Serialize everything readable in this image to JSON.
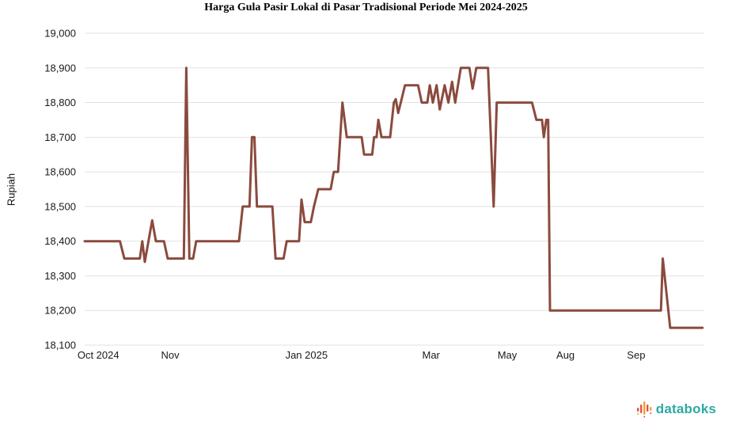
{
  "title": "Harga Gula Pasir Lokal di Pasar Tradisional Periode Mei 2024-2025",
  "y_axis_label": "Rupiah",
  "footer": {
    "brand": "databoks"
  },
  "colors": {
    "line": "#8B4A3E",
    "grid": "#E2E2E2",
    "text": "#1A1A1A",
    "brand_teal": "#2CA9A4",
    "brand_red": "#E8503A",
    "brand_orange": "#F2A03D"
  },
  "chart_data": {
    "type": "line",
    "title": "Harga Gula Pasir Lokal di Pasar Tradisional Periode Mei 2024-2025",
    "xlabel": "",
    "ylabel": "Rupiah",
    "ylim": [
      18100,
      19000
    ],
    "grid": "horizontal",
    "legend": "none",
    "y_ticks": [
      {
        "value": 19000,
        "label": "19,000"
      },
      {
        "value": 18900,
        "label": "18,900"
      },
      {
        "value": 18800,
        "label": "18,800"
      },
      {
        "value": 18700,
        "label": "18,700"
      },
      {
        "value": 18600,
        "label": "18,600"
      },
      {
        "value": 18500,
        "label": "18,500"
      },
      {
        "value": 18400,
        "label": "18,400"
      },
      {
        "value": 18300,
        "label": "18,300"
      },
      {
        "value": 18200,
        "label": "18,200"
      },
      {
        "value": 18100,
        "label": "18,100"
      }
    ],
    "x_ticks": [
      {
        "label": "Oct 2024",
        "f": 0.022
      },
      {
        "label": "Nov",
        "f": 0.138
      },
      {
        "label": "Jan 2025",
        "f": 0.358
      },
      {
        "label": "Mar",
        "f": 0.559
      },
      {
        "label": "May",
        "f": 0.682
      },
      {
        "label": "Aug",
        "f": 0.776
      },
      {
        "label": "Sep",
        "f": 0.89
      }
    ],
    "series": [
      {
        "name": "Harga Gula Pasir Lokal (Rupiah)",
        "points": [
          [
            0.0,
            18400
          ],
          [
            0.057,
            18400
          ],
          [
            0.064,
            18350
          ],
          [
            0.089,
            18350
          ],
          [
            0.093,
            18400
          ],
          [
            0.097,
            18340
          ],
          [
            0.109,
            18460
          ],
          [
            0.115,
            18400
          ],
          [
            0.128,
            18400
          ],
          [
            0.134,
            18350
          ],
          [
            0.16,
            18350
          ],
          [
            0.164,
            18900
          ],
          [
            0.169,
            18350
          ],
          [
            0.175,
            18350
          ],
          [
            0.18,
            18400
          ],
          [
            0.249,
            18400
          ],
          [
            0.255,
            18500
          ],
          [
            0.266,
            18500
          ],
          [
            0.27,
            18700
          ],
          [
            0.274,
            18700
          ],
          [
            0.278,
            18500
          ],
          [
            0.303,
            18500
          ],
          [
            0.308,
            18350
          ],
          [
            0.321,
            18350
          ],
          [
            0.326,
            18400
          ],
          [
            0.346,
            18400
          ],
          [
            0.35,
            18520
          ],
          [
            0.355,
            18455
          ],
          [
            0.365,
            18455
          ],
          [
            0.37,
            18500
          ],
          [
            0.377,
            18550
          ],
          [
            0.397,
            18550
          ],
          [
            0.402,
            18600
          ],
          [
            0.409,
            18600
          ],
          [
            0.416,
            18800
          ],
          [
            0.423,
            18700
          ],
          [
            0.447,
            18700
          ],
          [
            0.451,
            18650
          ],
          [
            0.464,
            18650
          ],
          [
            0.467,
            18700
          ],
          [
            0.471,
            18700
          ],
          [
            0.474,
            18750
          ],
          [
            0.479,
            18700
          ],
          [
            0.493,
            18700
          ],
          [
            0.499,
            18800
          ],
          [
            0.502,
            18810
          ],
          [
            0.506,
            18770
          ],
          [
            0.517,
            18850
          ],
          [
            0.538,
            18850
          ],
          [
            0.544,
            18800
          ],
          [
            0.553,
            18800
          ],
          [
            0.557,
            18850
          ],
          [
            0.562,
            18800
          ],
          [
            0.568,
            18850
          ],
          [
            0.573,
            18780
          ],
          [
            0.581,
            18850
          ],
          [
            0.587,
            18800
          ],
          [
            0.593,
            18860
          ],
          [
            0.598,
            18800
          ],
          [
            0.607,
            18900
          ],
          [
            0.621,
            18900
          ],
          [
            0.626,
            18840
          ],
          [
            0.632,
            18900
          ],
          [
            0.651,
            18900
          ],
          [
            0.66,
            18500
          ],
          [
            0.665,
            18800
          ],
          [
            0.722,
            18800
          ],
          [
            0.729,
            18750
          ],
          [
            0.738,
            18750
          ],
          [
            0.741,
            18700
          ],
          [
            0.745,
            18750
          ],
          [
            0.748,
            18750
          ],
          [
            0.751,
            18200
          ],
          [
            0.93,
            18200
          ],
          [
            0.933,
            18350
          ],
          [
            0.945,
            18150
          ],
          [
            0.997,
            18150
          ]
        ]
      }
    ]
  }
}
